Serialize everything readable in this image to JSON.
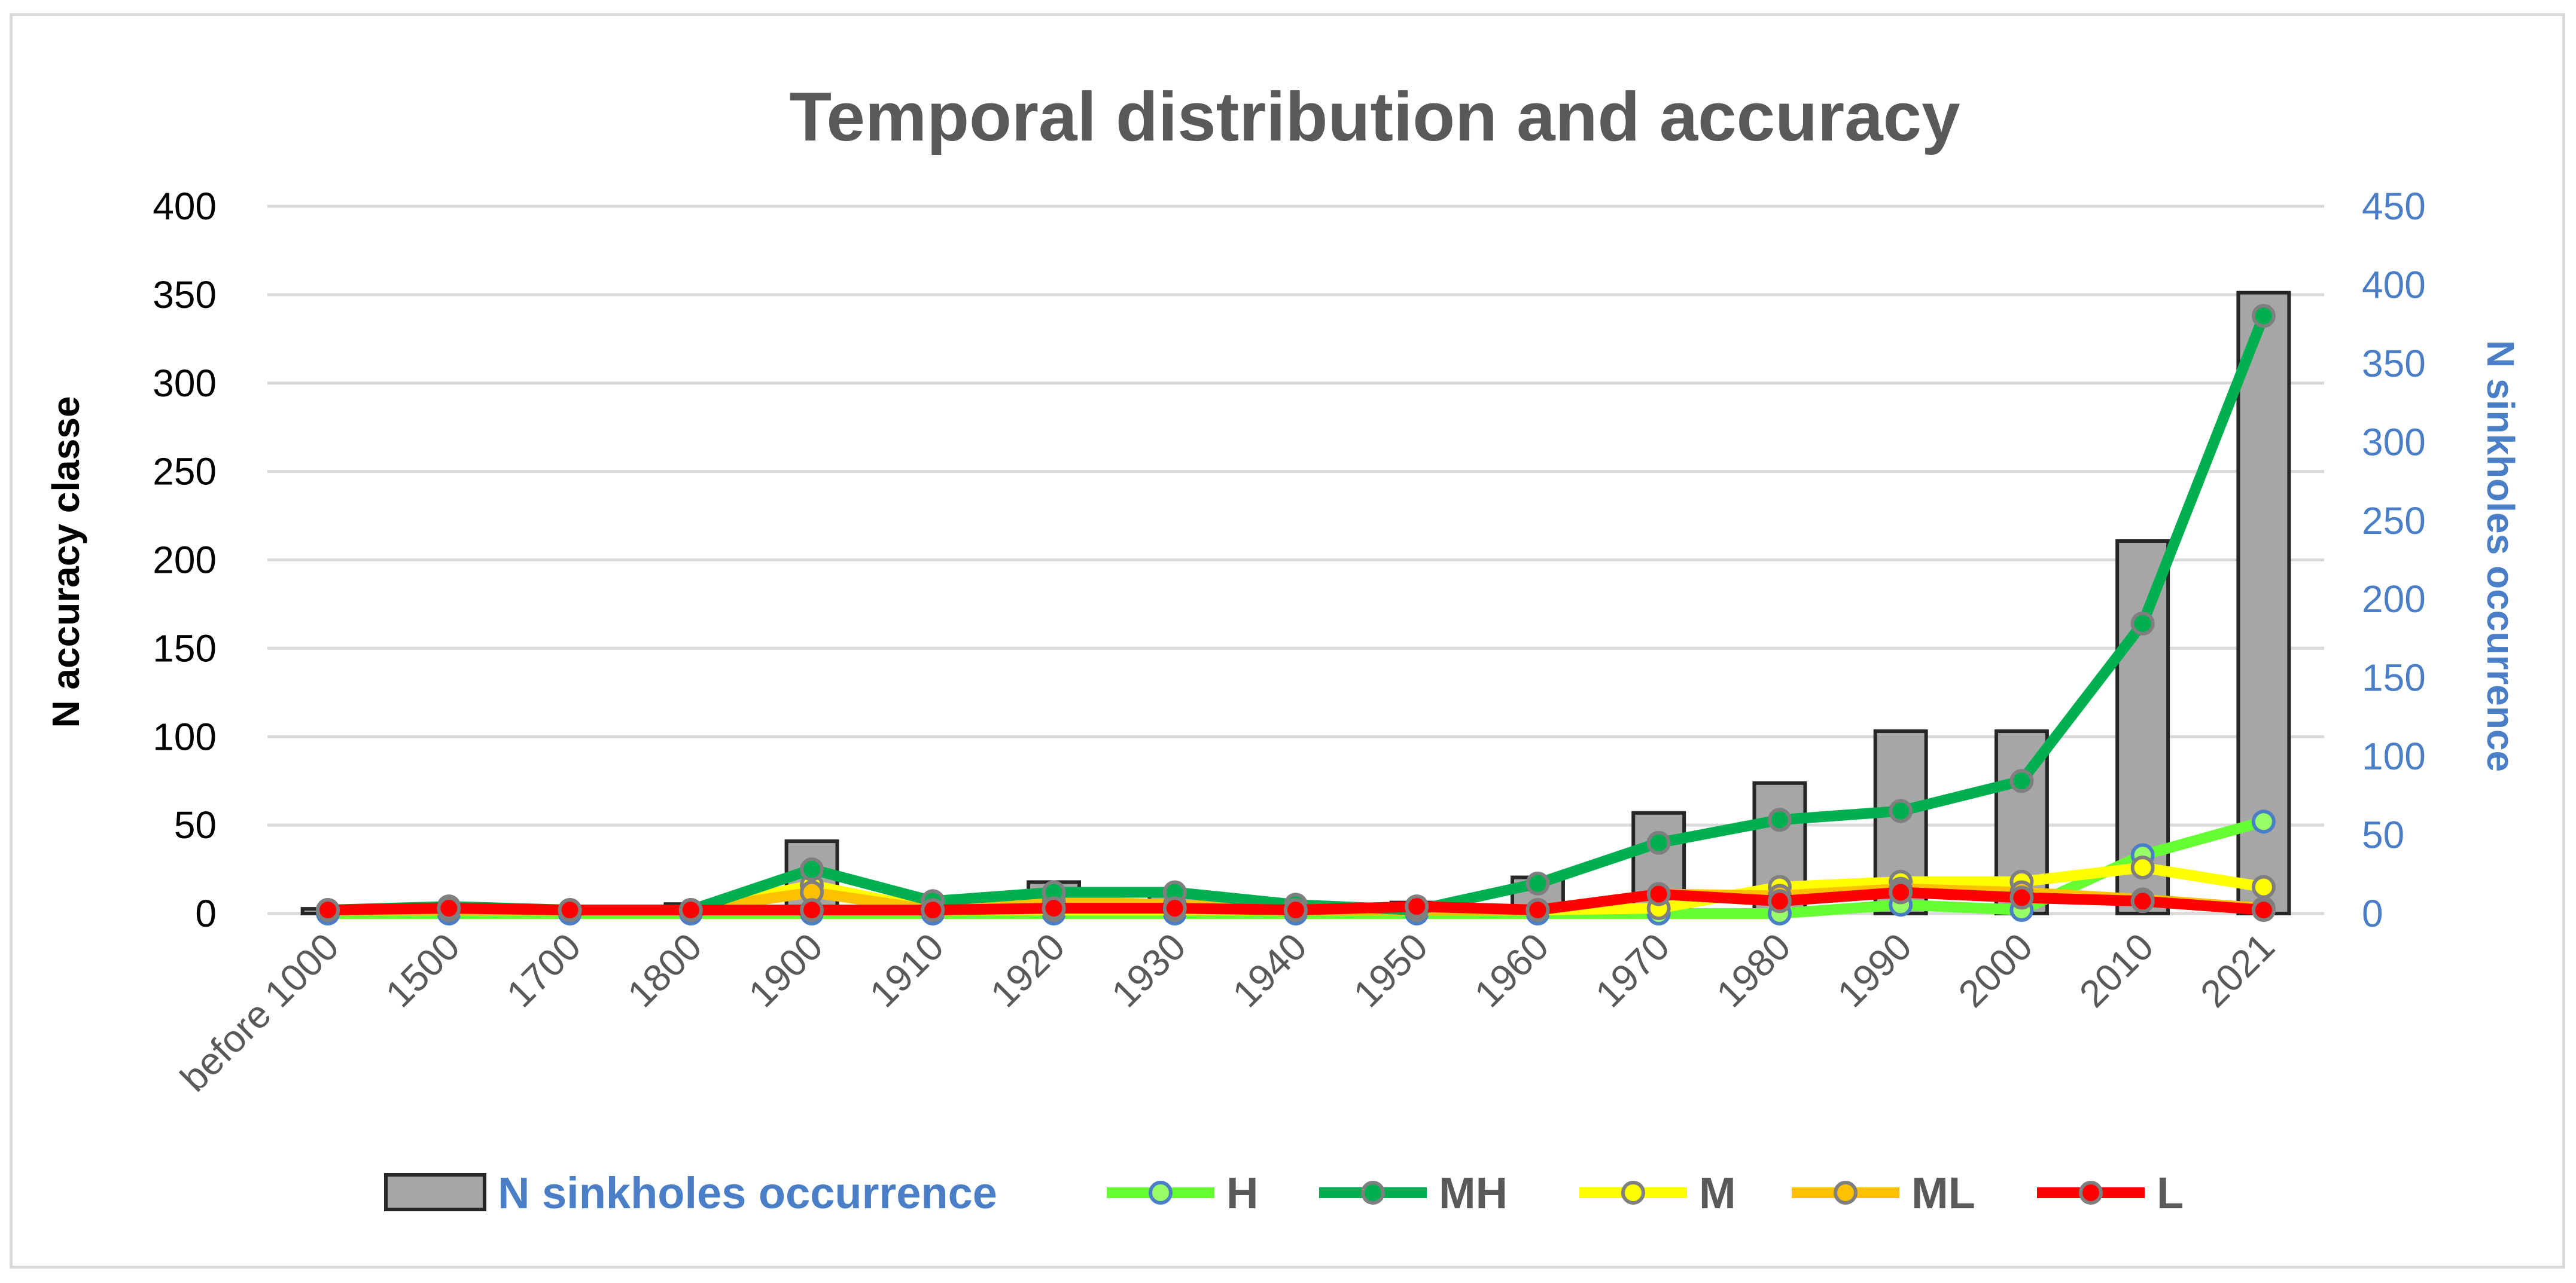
{
  "chart_data": {
    "type": "bar+line",
    "title": "Temporal distribution and accuracy",
    "categories": [
      "before 1000",
      "1500",
      "1700",
      "1800",
      "1900",
      "1910",
      "1920",
      "1930",
      "1940",
      "1950",
      "1960",
      "1970",
      "1980",
      "1990",
      "2000",
      "2010",
      "2021"
    ],
    "y_left": {
      "label": "N accuracy classe",
      "lim": [
        0,
        400
      ],
      "ticks": [
        "0",
        "50",
        "100",
        "150",
        "200",
        "250",
        "300",
        "350",
        "400"
      ]
    },
    "y_right": {
      "label": "N sinkholes occurrence",
      "lim": [
        0,
        450
      ],
      "ticks": [
        "0",
        "50",
        "100",
        "150",
        "200",
        "250",
        "300",
        "350",
        "400",
        "450"
      ]
    },
    "bar_series": {
      "name": "N sinkholes occurrence",
      "axis": "right",
      "color": "#a6a6a6",
      "values": [
        3,
        6,
        3,
        6,
        46,
        7,
        20,
        13,
        7,
        7,
        23,
        64,
        83,
        116,
        116,
        237,
        395
      ]
    },
    "line_series": [
      {
        "name": "H",
        "color": "#66ff33",
        "marker_fill": "#99ff66",
        "marker_edge": "#4a7fc8",
        "values": [
          0,
          0,
          0,
          0,
          0,
          0,
          0,
          0,
          0,
          0,
          0,
          0,
          0,
          5,
          2,
          33,
          52
        ]
      },
      {
        "name": "MH",
        "color": "#00b050",
        "marker_fill": "#00b050",
        "marker_edge": "#7f7f7f",
        "values": [
          2,
          4,
          2,
          2,
          25,
          7,
          12,
          12,
          5,
          2,
          17,
          40,
          53,
          58,
          75,
          164,
          338
        ]
      },
      {
        "name": "M",
        "color": "#ffff00",
        "marker_fill": "#ffff00",
        "marker_edge": "#7f7f7f",
        "values": [
          2,
          2,
          2,
          2,
          16,
          2,
          2,
          2,
          2,
          2,
          2,
          3,
          15,
          18,
          18,
          26,
          15
        ]
      },
      {
        "name": "ML",
        "color": "#ffc000",
        "marker_fill": "#ffc000",
        "marker_edge": "#7f7f7f",
        "values": [
          2,
          2,
          2,
          2,
          12,
          2,
          7,
          5,
          2,
          2,
          2,
          11,
          10,
          14,
          12,
          8,
          3
        ]
      },
      {
        "name": "L",
        "color": "#ff0000",
        "marker_fill": "#ff0000",
        "marker_edge": "#7f7f7f",
        "values": [
          2,
          3,
          2,
          2,
          2,
          2,
          3,
          3,
          2,
          4,
          2,
          11,
          7,
          12,
          9,
          7,
          2
        ]
      }
    ],
    "legend_position": "bottom"
  }
}
